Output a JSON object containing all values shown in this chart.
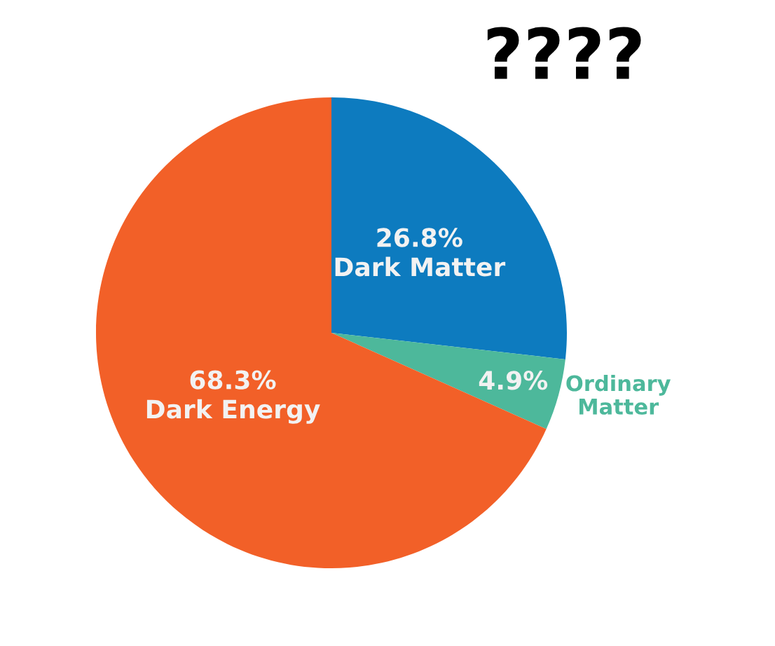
{
  "chart_data": {
    "type": "pie",
    "title": "????",
    "categories": [
      "Dark Matter",
      "Ordinary Matter",
      "Dark Energy"
    ],
    "values": [
      26.8,
      4.9,
      68.3
    ],
    "value_labels": [
      "26.8%",
      "4.9%",
      "68.3%"
    ],
    "colors": [
      "#0d7bbf",
      "#4db89b",
      "#f26028"
    ],
    "legend": false
  }
}
